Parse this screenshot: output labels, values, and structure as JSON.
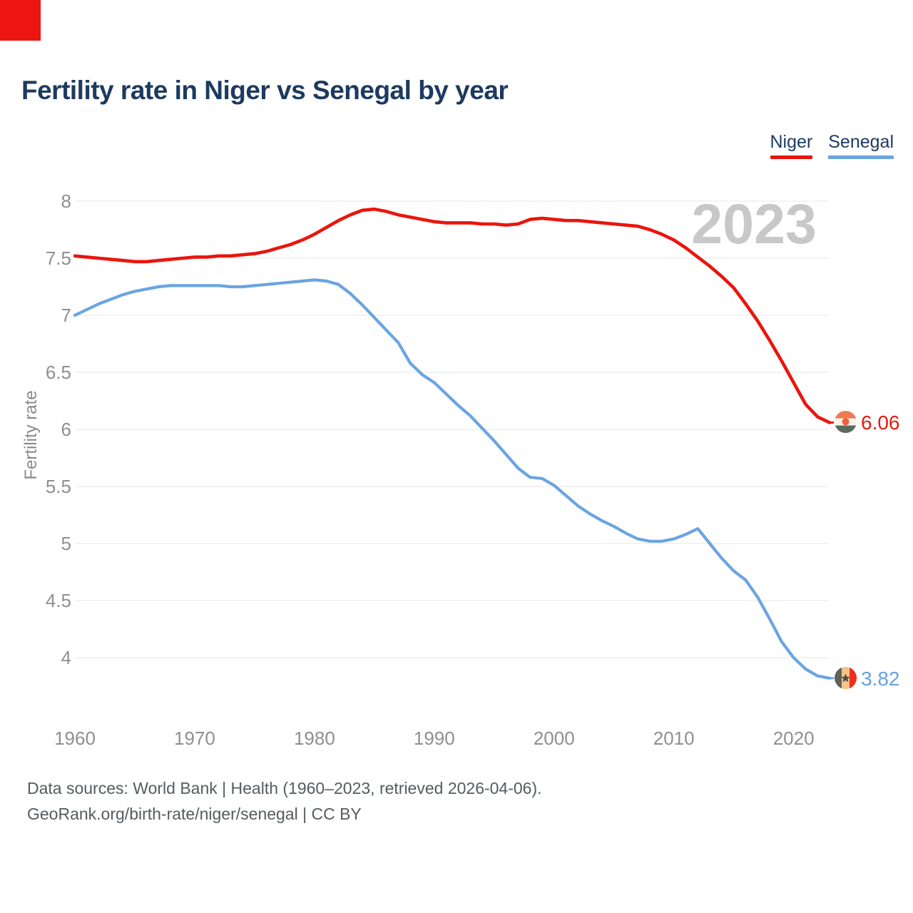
{
  "title": "Fertility rate in Niger vs Senegal by year",
  "watermark": "2023",
  "legend": {
    "items": [
      {
        "label": "Niger",
        "color": "#e8130c"
      },
      {
        "label": "Senegal",
        "color": "#6aa4e2"
      }
    ]
  },
  "end_labels": {
    "niger_value": "6.06",
    "senegal_value": "3.82"
  },
  "footer": {
    "line1": "Data sources: World Bank | Health (1960–2023, retrieved 2026-04-06).",
    "line2": "GeoRank.org/birth-rate/niger/senegal | CC BY"
  },
  "colors": {
    "niger_line": "#ea150d",
    "senegal_line": "#6aa4e2",
    "title_navy": "#1d3a5f",
    "tick_gray": "#8f8f8f",
    "grid_gray": "#efefef",
    "watermark_gray": "#c8c8c8",
    "footer_gray": "#565b5e",
    "corner_red": "#ec1510"
  },
  "chart_data": {
    "type": "line",
    "title": "Fertility rate in Niger vs Senegal by year",
    "xlabel": "",
    "ylabel": "Fertility rate",
    "grid": true,
    "legend_position": "top-right",
    "xticks": [
      1960,
      1970,
      1980,
      1990,
      2000,
      2010,
      2020
    ],
    "yticks": [
      8,
      7.5,
      7,
      6.5,
      6,
      5.5,
      5,
      4.5,
      4
    ],
    "xlim": [
      1960,
      2023
    ],
    "ylim": [
      3.6,
      8.15
    ],
    "x": [
      1960,
      1961,
      1962,
      1963,
      1964,
      1965,
      1966,
      1967,
      1968,
      1969,
      1970,
      1971,
      1972,
      1973,
      1974,
      1975,
      1976,
      1977,
      1978,
      1979,
      1980,
      1981,
      1982,
      1983,
      1984,
      1985,
      1986,
      1987,
      1988,
      1989,
      1990,
      1991,
      1992,
      1993,
      1994,
      1995,
      1996,
      1997,
      1998,
      1999,
      2000,
      2001,
      2002,
      2003,
      2004,
      2005,
      2006,
      2007,
      2008,
      2009,
      2010,
      2011,
      2012,
      2013,
      2014,
      2015,
      2016,
      2017,
      2018,
      2019,
      2020,
      2021,
      2022,
      2023
    ],
    "series": [
      {
        "name": "Niger",
        "color": "#ea150d",
        "end_label": "6.06",
        "values": [
          7.52,
          7.51,
          7.5,
          7.49,
          7.48,
          7.47,
          7.47,
          7.48,
          7.49,
          7.5,
          7.51,
          7.51,
          7.52,
          7.52,
          7.53,
          7.54,
          7.56,
          7.59,
          7.62,
          7.66,
          7.71,
          7.77,
          7.83,
          7.88,
          7.92,
          7.93,
          7.91,
          7.88,
          7.86,
          7.84,
          7.82,
          7.81,
          7.81,
          7.81,
          7.8,
          7.8,
          7.79,
          7.8,
          7.84,
          7.85,
          7.84,
          7.83,
          7.83,
          7.82,
          7.81,
          7.8,
          7.79,
          7.78,
          7.75,
          7.71,
          7.66,
          7.59,
          7.51,
          7.43,
          7.34,
          7.24,
          7.1,
          6.95,
          6.78,
          6.6,
          6.41,
          6.22,
          6.11,
          6.06
        ]
      },
      {
        "name": "Senegal",
        "color": "#6aa4e2",
        "end_label": "3.82",
        "values": [
          7.0,
          7.05,
          7.1,
          7.14,
          7.18,
          7.21,
          7.23,
          7.25,
          7.26,
          7.26,
          7.26,
          7.26,
          7.26,
          7.25,
          7.25,
          7.26,
          7.27,
          7.28,
          7.29,
          7.3,
          7.31,
          7.3,
          7.27,
          7.19,
          7.09,
          6.98,
          6.87,
          6.76,
          6.58,
          6.48,
          6.41,
          6.31,
          6.21,
          6.12,
          6.01,
          5.9,
          5.78,
          5.66,
          5.58,
          5.57,
          5.51,
          5.42,
          5.33,
          5.26,
          5.2,
          5.15,
          5.09,
          5.04,
          5.02,
          5.02,
          5.04,
          5.08,
          5.13,
          5.0,
          4.87,
          4.76,
          4.68,
          4.53,
          4.34,
          4.14,
          4.0,
          3.9,
          3.84,
          3.82
        ]
      }
    ]
  }
}
